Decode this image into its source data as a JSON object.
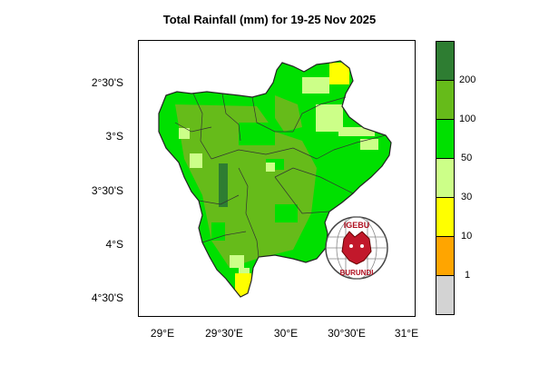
{
  "title": "Total Rainfall (mm) for 19-25 Nov 2025",
  "y_ticks": [
    "2°30'S",
    "3°S",
    "3°30'S",
    "4°S",
    "4°30'S"
  ],
  "x_ticks": [
    "29°E",
    "29°30'E",
    "30°E",
    "30°30'E",
    "31°E"
  ],
  "colorbar": {
    "labels": [
      "200",
      "100",
      "50",
      "30",
      "10",
      "1"
    ],
    "colors": [
      "#2e7d32",
      "#66bb1a",
      "#00e000",
      "#ccff88",
      "#ffff00",
      "#ffa500",
      "#d3d3d3"
    ]
  },
  "logo": {
    "top_text": "IGEBU",
    "bottom_text": "BURUNDI"
  },
  "legend_colors": {
    "ocean": "#ffffff",
    "dark_green": "#2e7d32",
    "mid_green": "#66bb1a",
    "bright_green": "#00e000",
    "light_green": "#ccff88",
    "yellow": "#ffff00"
  }
}
